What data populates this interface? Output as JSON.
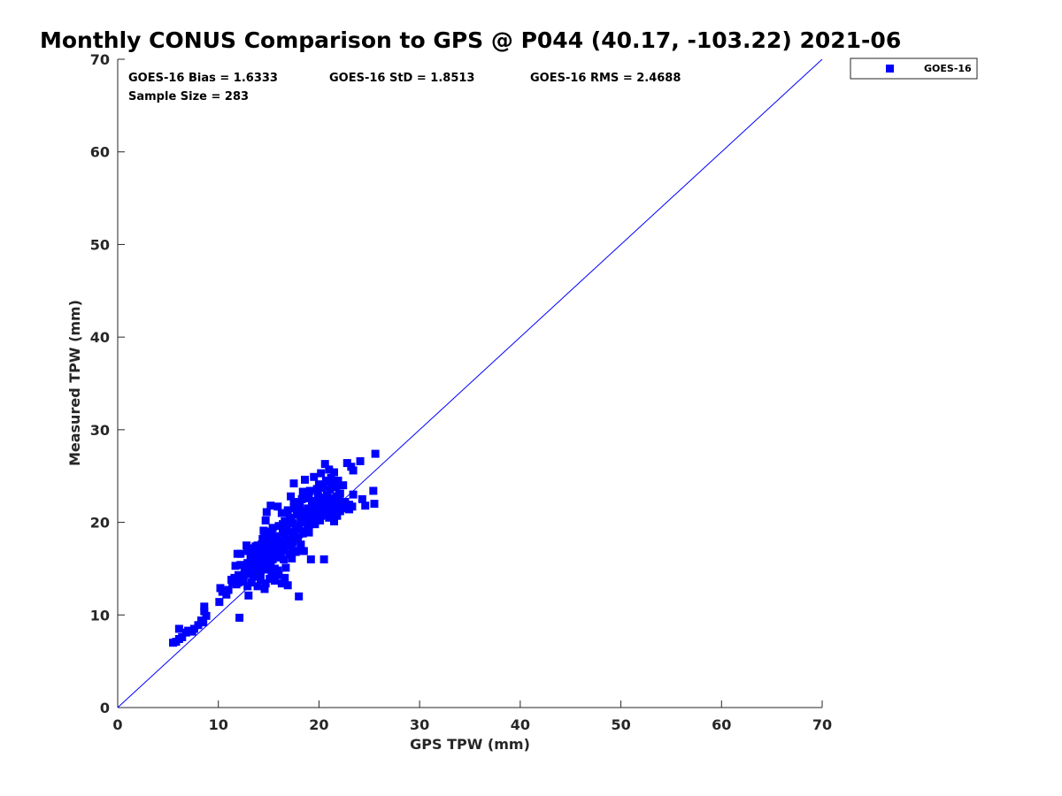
{
  "chart_data": {
    "type": "scatter",
    "title": "Monthly CONUS Comparison to GPS @ P044 (40.17, -103.22) 2021-06",
    "xlabel": "GPS TPW (mm)",
    "ylabel": "Measured TPW (mm)",
    "xlim": [
      0,
      70
    ],
    "ylim": [
      0,
      70
    ],
    "xticks": [
      "0",
      "10",
      "20",
      "30",
      "40",
      "50",
      "60",
      "70"
    ],
    "yticks": [
      "0",
      "10",
      "20",
      "30",
      "40",
      "50",
      "60",
      "70"
    ],
    "grid": false,
    "legend_position": "top-right, outside plot",
    "stats": {
      "bias": "GOES-16 Bias = 1.6333",
      "std": "GOES-16 StD = 1.8513",
      "rms": "GOES-16 RMS = 2.4688",
      "sample": "Sample Size = 283"
    },
    "reference_line": {
      "x": [
        0,
        70
      ],
      "y": [
        0,
        70
      ],
      "color": "#0000ff"
    },
    "series": [
      {
        "name": "GOES-16",
        "color": "#0000ff",
        "marker": "square",
        "points": [
          [
            5.5,
            7.0
          ],
          [
            5.8,
            7.1
          ],
          [
            6.1,
            7.4
          ],
          [
            6.1,
            8.5
          ],
          [
            6.4,
            7.6
          ],
          [
            6.8,
            8.1
          ],
          [
            7.0,
            8.3
          ],
          [
            7.4,
            8.2
          ],
          [
            7.6,
            8.5
          ],
          [
            8.0,
            8.9
          ],
          [
            8.3,
            9.4
          ],
          [
            8.6,
            10.4
          ],
          [
            8.6,
            10.9
          ],
          [
            8.8,
            9.9
          ],
          [
            8.5,
            9.2
          ],
          [
            10.1,
            11.4
          ],
          [
            10.2,
            12.9
          ],
          [
            10.4,
            12.5
          ],
          [
            10.8,
            12.2
          ],
          [
            11.0,
            12.7
          ],
          [
            11.3,
            13.8
          ],
          [
            11.4,
            13.5
          ],
          [
            11.7,
            15.3
          ],
          [
            11.8,
            13.3
          ],
          [
            11.9,
            16.6
          ],
          [
            12.0,
            14.3
          ],
          [
            12.1,
            9.7
          ],
          [
            12.2,
            16.6
          ],
          [
            12.3,
            14.1
          ],
          [
            12.4,
            13.6
          ],
          [
            12.6,
            15.0
          ],
          [
            12.7,
            14.6
          ],
          [
            12.8,
            17.5
          ],
          [
            12.9,
            13.1
          ],
          [
            12.9,
            15.6
          ],
          [
            13.0,
            12.1
          ],
          [
            13.0,
            14.8
          ],
          [
            13.1,
            15.1
          ],
          [
            13.2,
            16.1
          ],
          [
            13.3,
            13.5
          ],
          [
            13.4,
            16.8
          ],
          [
            13.5,
            14.2
          ],
          [
            13.6,
            15.5
          ],
          [
            13.7,
            17.4
          ],
          [
            13.7,
            16.1
          ],
          [
            13.8,
            14.7
          ],
          [
            13.9,
            13.1
          ],
          [
            14.0,
            16.5
          ],
          [
            14.0,
            15.3
          ],
          [
            14.1,
            17.2
          ],
          [
            14.2,
            14.6
          ],
          [
            14.3,
            16.4
          ],
          [
            14.4,
            18.2
          ],
          [
            14.5,
            19.1
          ],
          [
            14.5,
            15.8
          ],
          [
            14.6,
            12.8
          ],
          [
            14.6,
            16.9
          ],
          [
            14.7,
            13.4
          ],
          [
            14.7,
            20.2
          ],
          [
            14.8,
            21.1
          ],
          [
            14.8,
            15.6
          ],
          [
            14.9,
            18.1
          ],
          [
            15.0,
            16.2
          ],
          [
            15.0,
            19.0
          ],
          [
            15.1,
            13.9
          ],
          [
            15.1,
            17.0
          ],
          [
            15.2,
            21.8
          ],
          [
            15.3,
            14.5
          ],
          [
            15.3,
            18.7
          ],
          [
            15.4,
            16.0
          ],
          [
            15.5,
            17.6
          ],
          [
            15.6,
            13.7
          ],
          [
            15.6,
            15.0
          ],
          [
            15.7,
            18.3
          ],
          [
            15.8,
            16.7
          ],
          [
            15.9,
            21.7
          ],
          [
            16.0,
            14.3
          ],
          [
            16.0,
            19.6
          ],
          [
            16.1,
            16.6
          ],
          [
            16.2,
            17.8
          ],
          [
            16.3,
            21.0
          ],
          [
            16.3,
            13.4
          ],
          [
            16.4,
            18.9
          ],
          [
            16.5,
            16.9
          ],
          [
            16.6,
            20.1
          ],
          [
            16.7,
            15.1
          ],
          [
            16.7,
            17.7
          ],
          [
            16.8,
            19.4
          ],
          [
            16.9,
            21.3
          ],
          [
            16.9,
            13.2
          ],
          [
            17.0,
            18.1
          ],
          [
            17.1,
            16.5
          ],
          [
            17.1,
            20.5
          ],
          [
            17.2,
            22.8
          ],
          [
            17.3,
            17.2
          ],
          [
            17.4,
            19.9
          ],
          [
            17.5,
            21.5
          ],
          [
            17.5,
            24.2
          ],
          [
            17.6,
            18.5
          ],
          [
            17.7,
            16.8
          ],
          [
            17.8,
            20.8
          ],
          [
            17.9,
            22.1
          ],
          [
            17.9,
            18.3
          ],
          [
            18.0,
            12.0
          ],
          [
            18.0,
            19.5
          ],
          [
            18.1,
            21.7
          ],
          [
            18.2,
            17.6
          ],
          [
            18.2,
            20.2
          ],
          [
            18.3,
            22.5
          ],
          [
            18.4,
            18.8
          ],
          [
            18.5,
            21.1
          ],
          [
            18.5,
            16.9
          ],
          [
            18.6,
            24.6
          ],
          [
            18.7,
            20.4
          ],
          [
            18.8,
            19.1
          ],
          [
            18.8,
            22.7
          ],
          [
            18.9,
            21.5
          ],
          [
            19.0,
            18.9
          ],
          [
            19.1,
            20.8
          ],
          [
            19.1,
            23.4
          ],
          [
            19.2,
            16.0
          ],
          [
            19.3,
            21.9
          ],
          [
            19.4,
            20.1
          ],
          [
            19.5,
            22.3
          ],
          [
            19.5,
            24.9
          ],
          [
            19.6,
            19.8
          ],
          [
            19.7,
            21.2
          ],
          [
            19.8,
            23.6
          ],
          [
            19.8,
            20.6
          ],
          [
            19.9,
            22.1
          ],
          [
            20.0,
            24.1
          ],
          [
            20.0,
            20.3
          ],
          [
            20.1,
            21.8
          ],
          [
            20.2,
            25.3
          ],
          [
            20.3,
            22.7
          ],
          [
            20.4,
            21.0
          ],
          [
            20.5,
            16.0
          ],
          [
            20.5,
            23.9
          ],
          [
            20.6,
            26.3
          ],
          [
            20.7,
            21.4
          ],
          [
            20.8,
            22.9
          ],
          [
            20.9,
            20.8
          ],
          [
            21.0,
            25.7
          ],
          [
            21.0,
            22.2
          ],
          [
            21.1,
            23.5
          ],
          [
            21.2,
            21.1
          ],
          [
            21.3,
            24.2
          ],
          [
            21.4,
            22.6
          ],
          [
            21.5,
            20.1
          ],
          [
            21.5,
            25.4
          ],
          [
            21.6,
            21.9
          ],
          [
            21.7,
            23.8
          ],
          [
            21.8,
            20.7
          ],
          [
            21.9,
            22.4
          ],
          [
            22.0,
            21.3
          ],
          [
            22.1,
            23.1
          ],
          [
            22.2,
            21.8
          ],
          [
            22.3,
            22.0
          ],
          [
            22.4,
            24.0
          ],
          [
            22.5,
            21.5
          ],
          [
            22.6,
            22.2
          ],
          [
            22.8,
            26.4
          ],
          [
            23.0,
            21.9
          ],
          [
            23.2,
            26.0
          ],
          [
            23.4,
            25.6
          ],
          [
            23.4,
            23.0
          ],
          [
            23.3,
            21.7
          ],
          [
            24.1,
            26.6
          ],
          [
            24.3,
            22.5
          ],
          [
            24.6,
            21.8
          ],
          [
            25.4,
            23.4
          ],
          [
            25.5,
            22.0
          ],
          [
            25.6,
            27.4
          ],
          [
            12.5,
            13.9
          ],
          [
            13.2,
            14.4
          ],
          [
            13.6,
            16.3
          ],
          [
            14.1,
            15.9
          ],
          [
            14.4,
            17.1
          ],
          [
            14.9,
            16.4
          ],
          [
            15.3,
            16.9
          ],
          [
            15.7,
            17.3
          ],
          [
            16.2,
            16.2
          ],
          [
            16.6,
            18.6
          ],
          [
            17.0,
            19.9
          ],
          [
            17.4,
            18.9
          ],
          [
            17.8,
            19.3
          ],
          [
            18.3,
            20.0
          ],
          [
            18.7,
            20.9
          ],
          [
            19.2,
            21.4
          ],
          [
            19.6,
            20.0
          ],
          [
            20.0,
            21.2
          ],
          [
            20.4,
            22.1
          ],
          [
            20.9,
            21.6
          ],
          [
            21.3,
            20.9
          ],
          [
            21.8,
            22.8
          ],
          [
            12.9,
            16.9
          ],
          [
            13.5,
            17.2
          ],
          [
            14.3,
            17.6
          ],
          [
            15.0,
            17.9
          ],
          [
            15.8,
            18.5
          ],
          [
            16.4,
            19.8
          ],
          [
            17.2,
            20.2
          ],
          [
            18.1,
            21.2
          ],
          [
            19.0,
            22.6
          ],
          [
            19.9,
            23.0
          ],
          [
            20.7,
            24.5
          ],
          [
            11.6,
            14.0
          ],
          [
            12.2,
            15.4
          ],
          [
            13.9,
            17.5
          ],
          [
            14.6,
            18.4
          ],
          [
            15.4,
            19.4
          ],
          [
            16.1,
            17.1
          ],
          [
            16.8,
            17.5
          ],
          [
            17.6,
            21.9
          ],
          [
            18.4,
            23.3
          ],
          [
            19.3,
            20.5
          ],
          [
            20.2,
            20.7
          ],
          [
            21.1,
            22.0
          ],
          [
            22.0,
            23.0
          ],
          [
            13.4,
            15.8
          ],
          [
            14.2,
            13.8
          ],
          [
            15.0,
            14.9
          ],
          [
            15.9,
            14.8
          ],
          [
            16.6,
            14.0
          ],
          [
            17.3,
            16.1
          ],
          [
            18.1,
            17.0
          ],
          [
            18.9,
            19.5
          ],
          [
            19.7,
            21.6
          ],
          [
            20.6,
            22.4
          ],
          [
            21.4,
            21.5
          ],
          [
            22.2,
            21.7
          ],
          [
            12.0,
            13.5
          ],
          [
            12.7,
            14.9
          ],
          [
            13.3,
            15.4
          ],
          [
            14.0,
            16.8
          ],
          [
            14.8,
            17.3
          ],
          [
            15.5,
            16.4
          ],
          [
            16.2,
            18.0
          ],
          [
            16.9,
            19.0
          ],
          [
            17.7,
            19.6
          ],
          [
            18.5,
            20.6
          ],
          [
            19.4,
            21.0
          ],
          [
            20.3,
            23.7
          ],
          [
            21.2,
            24.8
          ],
          [
            22.1,
            21.2
          ],
          [
            23.0,
            21.4
          ],
          [
            13.8,
            16.9
          ],
          [
            14.5,
            15.1
          ],
          [
            15.2,
            15.6
          ],
          [
            16.0,
            16.9
          ],
          [
            16.8,
            21.0
          ],
          [
            17.5,
            22.2
          ],
          [
            18.2,
            20.5
          ],
          [
            19.1,
            19.9
          ],
          [
            20.1,
            20.2
          ],
          [
            21.0,
            20.5
          ],
          [
            21.9,
            24.5
          ],
          [
            14.7,
            16.2
          ],
          [
            15.6,
            17.9
          ],
          [
            16.5,
            16.0
          ],
          [
            17.4,
            17.9
          ],
          [
            18.6,
            19.0
          ]
        ]
      }
    ]
  }
}
